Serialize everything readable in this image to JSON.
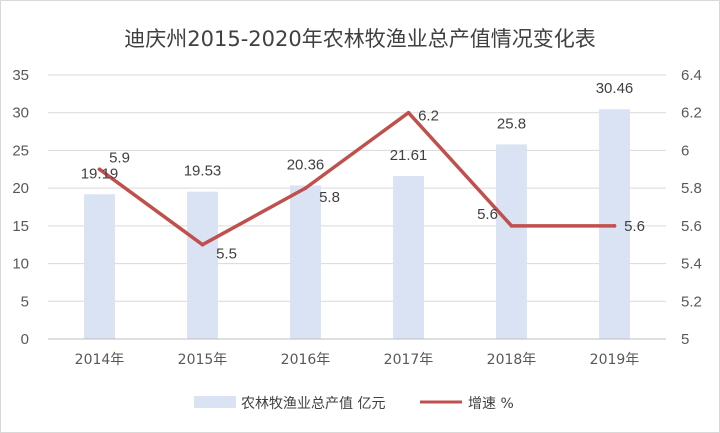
{
  "chart_data": {
    "type": "bar",
    "title": "迪庆州2015-2020年农林牧渔业总产值情况变化表",
    "categories": [
      "2014年",
      "2015年",
      "2016年",
      "2017年",
      "2018年",
      "2019年"
    ],
    "series": [
      {
        "name": "农林牧渔业总产值 亿元",
        "type": "bar",
        "axis": "left",
        "color": "#dae3f3",
        "values": [
          19.19,
          19.53,
          20.36,
          21.61,
          25.8,
          30.46
        ],
        "labels": [
          "19.19",
          "19.53",
          "20.36",
          "21.61",
          "25.8",
          "30.46"
        ]
      },
      {
        "name": "增速 %",
        "type": "line",
        "axis": "right",
        "color": "#c0504d",
        "values": [
          5.9,
          5.5,
          5.8,
          6.2,
          5.6,
          5.6
        ],
        "labels": [
          "5.9",
          "5.5",
          "5.8",
          "6.2",
          "5.6",
          "5.6"
        ]
      }
    ],
    "y_left": {
      "min": 0,
      "max": 35,
      "step": 5,
      "ticks": [
        "0",
        "5",
        "10",
        "15",
        "20",
        "25",
        "30",
        "35"
      ]
    },
    "y_right": {
      "min": 5,
      "max": 6.4,
      "step": 0.2,
      "ticks": [
        "5",
        "5.2",
        "5.4",
        "5.6",
        "5.8",
        "6",
        "6.2",
        "6.4"
      ]
    },
    "grid": true,
    "legend_position": "bottom"
  }
}
